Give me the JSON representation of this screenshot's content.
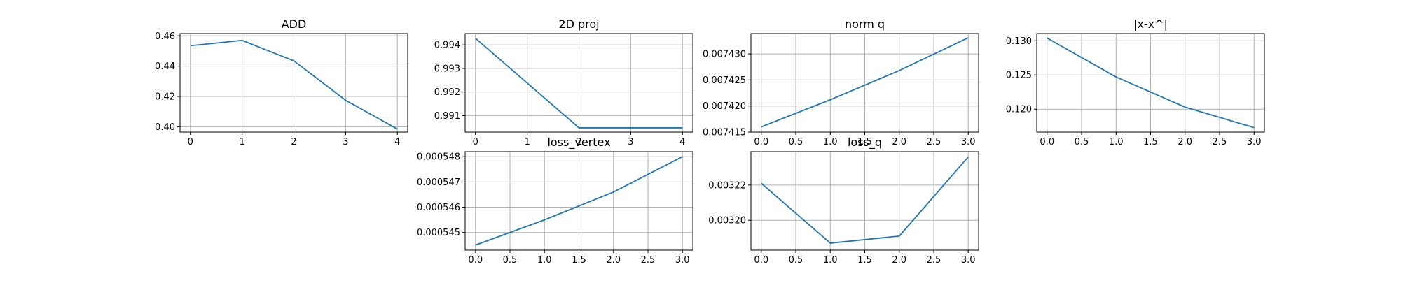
{
  "figure": {
    "line_color": "#1f77b4",
    "grid_color": "#b0b0b0",
    "axes_color": "#000000"
  },
  "chart_data": [
    {
      "type": "line",
      "title": "ADD",
      "x": [
        0,
        1,
        2,
        3,
        4
      ],
      "y": [
        0.4535,
        0.457,
        0.4435,
        0.4175,
        0.3985
      ],
      "xlim": [
        -0.2,
        4.2
      ],
      "ylim": [
        0.3965,
        0.4615
      ],
      "xticks": [
        0,
        1,
        2,
        3,
        4
      ],
      "xtick_labels": [
        "0",
        "1",
        "2",
        "3",
        "4"
      ],
      "yticks": [
        0.4,
        0.42,
        0.44,
        0.46
      ],
      "ytick_labels": [
        "0.40",
        "0.42",
        "0.44",
        "0.46"
      ],
      "grid": true
    },
    {
      "type": "line",
      "title": "2D proj",
      "x": [
        0,
        2,
        3,
        4
      ],
      "y": [
        0.99428,
        0.99048,
        0.99048,
        0.99048
      ],
      "xlim": [
        -0.2,
        4.2
      ],
      "ylim": [
        0.9903,
        0.99448
      ],
      "xticks": [
        0,
        1,
        2,
        3,
        4
      ],
      "xtick_labels": [
        "0",
        "1",
        "2",
        "3",
        "4"
      ],
      "yticks": [
        0.991,
        0.992,
        0.993,
        0.994
      ],
      "ytick_labels": [
        "0.991",
        "0.992",
        "0.993",
        "0.994"
      ],
      "grid": true
    },
    {
      "type": "line",
      "title": "norm q",
      "x": [
        0,
        1,
        2,
        3
      ],
      "y": [
        0.007416,
        0.0074212,
        0.0074268,
        0.0074331
      ],
      "xlim": [
        -0.15,
        3.15
      ],
      "ylim": [
        0.007415,
        0.0074339
      ],
      "xticks": [
        0,
        0.5,
        1,
        1.5,
        2,
        2.5,
        3
      ],
      "xtick_labels": [
        "0.0",
        "0.5",
        "1.0",
        "1.5",
        "2.0",
        "2.5",
        "3.0"
      ],
      "yticks": [
        0.007415,
        0.00742,
        0.007425,
        0.00743
      ],
      "ytick_labels": [
        "0.007415",
        "0.007420",
        "0.007425",
        "0.007430"
      ],
      "grid": true
    },
    {
      "type": "line",
      "title": "|x-x^|",
      "x": [
        0,
        1,
        2,
        3
      ],
      "y": [
        0.1304,
        0.1247,
        0.1203,
        0.1173
      ],
      "xlim": [
        -0.15,
        3.15
      ],
      "ylim": [
        0.11665,
        0.13105
      ],
      "xticks": [
        0,
        0.5,
        1,
        1.5,
        2,
        2.5,
        3
      ],
      "xtick_labels": [
        "0.0",
        "0.5",
        "1.0",
        "1.5",
        "2.0",
        "2.5",
        "3.0"
      ],
      "yticks": [
        0.12,
        0.125,
        0.13
      ],
      "ytick_labels": [
        "0.120",
        "0.125",
        "0.130"
      ],
      "grid": true
    },
    {
      "type": "line",
      "title": "loss_vertex",
      "x": [
        0,
        1,
        2,
        3
      ],
      "y": [
        0.0005445,
        0.0005455,
        0.0005466,
        0.000548
      ],
      "xlim": [
        -0.15,
        3.15
      ],
      "ylim": [
        0.0005443,
        0.0005482
      ],
      "xticks": [
        0,
        0.5,
        1,
        1.5,
        2,
        2.5,
        3
      ],
      "xtick_labels": [
        "0.0",
        "0.5",
        "1.0",
        "1.5",
        "2.0",
        "2.5",
        "3.0"
      ],
      "yticks": [
        0.000545,
        0.000546,
        0.000547,
        0.000548
      ],
      "ytick_labels": [
        "0.000545",
        "0.000546",
        "0.000547",
        "0.000548"
      ],
      "grid": true
    },
    {
      "type": "line",
      "title": "loss_q",
      "x": [
        0,
        1,
        2,
        3
      ],
      "y": [
        0.003221,
        0.003187,
        0.003191,
        0.003236
      ],
      "xlim": [
        -0.15,
        3.15
      ],
      "ylim": [
        0.003183,
        0.003239
      ],
      "xticks": [
        0,
        0.5,
        1,
        1.5,
        2,
        2.5,
        3
      ],
      "xtick_labels": [
        "0.0",
        "0.5",
        "1.0",
        "1.5",
        "2.0",
        "2.5",
        "3.0"
      ],
      "yticks": [
        0.0032,
        0.00322
      ],
      "ytick_labels": [
        "0.00320",
        "0.00322"
      ],
      "grid": true
    }
  ]
}
